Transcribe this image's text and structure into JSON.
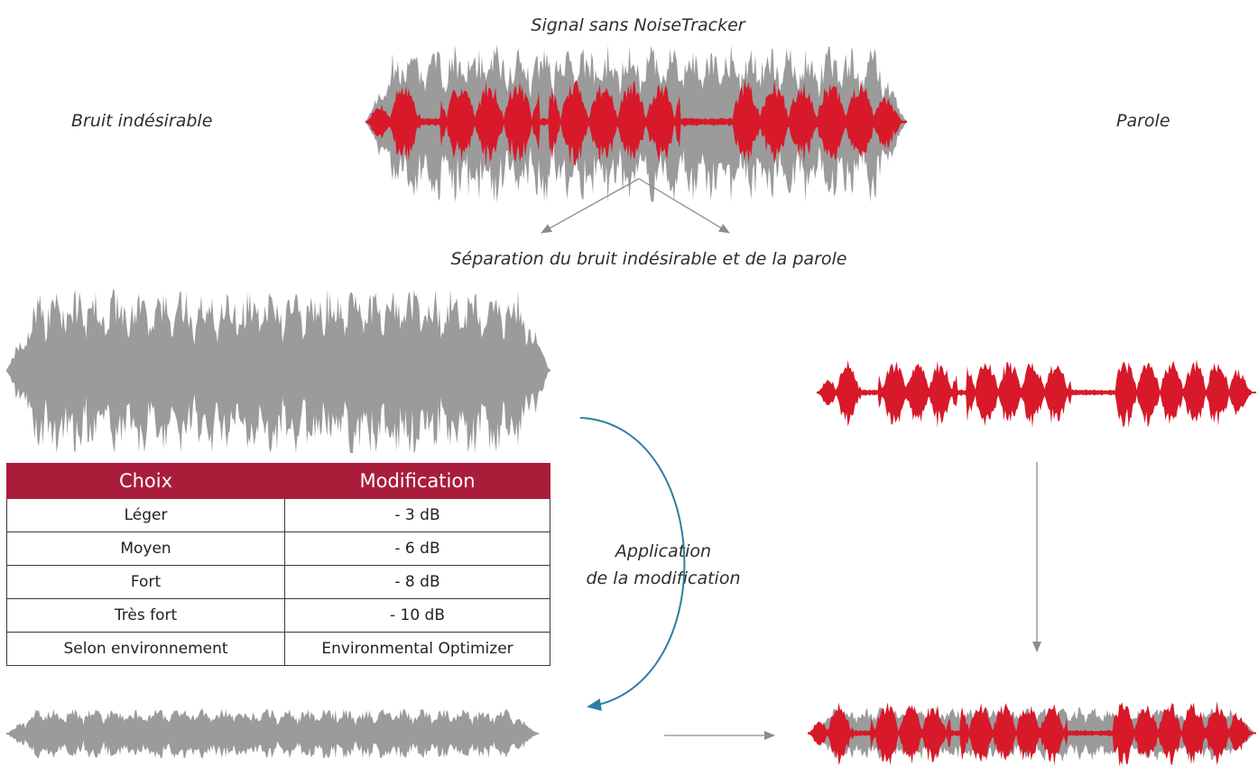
{
  "labels": {
    "top_title": "Signal sans NoiseTracker",
    "left_label": "Bruit indésirable",
    "right_label": "Parole",
    "separation": "Séparation du bruit indésirable et de la parole",
    "apply_line1": "Application",
    "apply_line2": "de la modification"
  },
  "table": {
    "headers": [
      "Choix",
      "Modification"
    ],
    "rows": [
      [
        "Léger",
        "- 3 dB"
      ],
      [
        "Moyen",
        "- 6 dB"
      ],
      [
        "Fort",
        "- 8 dB"
      ],
      [
        "Très fort",
        "- 10 dB"
      ],
      [
        "Selon environnement",
        "Environmental Optimizer"
      ]
    ]
  },
  "colors": {
    "noise": "#9b9b9b",
    "speech": "#d7192a",
    "header": "#a91d3a",
    "curve_arrow": "#2e7fa0",
    "arrow": "#8c8c8c"
  }
}
